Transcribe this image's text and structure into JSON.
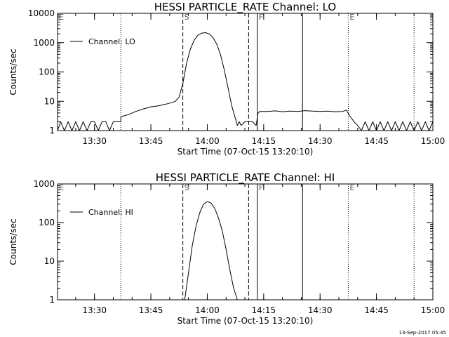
{
  "footer": {
    "timestamp": "13-Sep-2017 05:45"
  },
  "chart_data": [
    {
      "type": "line",
      "title": "HESSI PARTICLE_RATE Channel: LO",
      "xlabel": "Start Time (07-Oct-15 13:20:10)",
      "ylabel": "Counts/sec",
      "xscale": "linear",
      "yscale": "log",
      "xlim": [
        "13:20:10",
        "15:00"
      ],
      "ylim": [
        1,
        10000
      ],
      "x_ticks": [
        "13:30",
        "13:45",
        "14:00",
        "14:15",
        "14:30",
        "14:45",
        "15:00"
      ],
      "y_ticks": [
        "1",
        "10",
        "100",
        "1000",
        "10000"
      ],
      "legend": {
        "position": "top-left",
        "entries": [
          "Channel: LO"
        ]
      },
      "markers": [
        {
          "label": "E",
          "time": "13:20:10",
          "style": "dotted"
        },
        {
          "label": "",
          "time": "13:37:00",
          "style": "dotted"
        },
        {
          "label": "S",
          "time": "13:53:30",
          "style": "dashed"
        },
        {
          "label": "",
          "time": "14:11:00",
          "style": "dashed"
        },
        {
          "label": "F",
          "time": "14:13:20",
          "style": "solid"
        },
        {
          "label": "",
          "time": "14:25:20",
          "style": "solid"
        },
        {
          "label": "E",
          "time": "14:37:30",
          "style": "dotted"
        },
        {
          "label": "",
          "time": "14:55:00",
          "style": "dotted"
        }
      ],
      "series": [
        {
          "name": "Channel: LO",
          "x": [
            "13:20:10",
            "13:21:00",
            "13:22:00",
            "13:23:00",
            "13:24:00",
            "13:25:00",
            "13:26:00",
            "13:27:00",
            "13:28:00",
            "13:29:00",
            "13:30:00",
            "13:31:00",
            "13:32:00",
            "13:33:00",
            "13:34:00",
            "13:35:00",
            "13:36:00",
            "13:37:00",
            "13:37:01",
            "13:39:00",
            "13:41:00",
            "13:43:00",
            "13:45:00",
            "13:47:00",
            "13:49:00",
            "13:50:30",
            "13:51:30",
            "13:52:30",
            "13:53:30",
            "13:54:30",
            "13:55:30",
            "13:56:30",
            "13:57:30",
            "13:58:30",
            "13:59:30",
            "14:00:30",
            "14:01:30",
            "14:02:30",
            "14:03:30",
            "14:04:30",
            "14:05:30",
            "14:06:30",
            "14:07:30",
            "14:08:00",
            "14:08:30",
            "14:09:00",
            "14:10:00",
            "14:11:00",
            "14:12:00",
            "14:13:00",
            "14:13:30",
            "14:14:00",
            "14:16:00",
            "14:18:00",
            "14:20:00",
            "14:22:00",
            "14:24:00",
            "14:26:00",
            "14:28:00",
            "14:30:00",
            "14:32:00",
            "14:34:00",
            "14:36:00",
            "14:37:00",
            "14:38:00",
            "14:38:30",
            "14:39:00",
            "14:40:00",
            "14:41:00",
            "14:42:00",
            "14:43:00",
            "14:44:00",
            "14:45:00",
            "14:46:00",
            "14:47:00",
            "14:48:00",
            "14:49:00",
            "14:50:00",
            "14:51:00",
            "14:52:00",
            "14:53:00",
            "14:54:00",
            "14:55:00",
            "14:56:00",
            "14:57:00",
            "14:58:00",
            "14:59:00",
            "15:00:00"
          ],
          "y": [
            1,
            2,
            1,
            2,
            1,
            2,
            1,
            2,
            1,
            2,
            2,
            1,
            2,
            2,
            1,
            2,
            2,
            2,
            3,
            3.5,
            4.5,
            5.5,
            6.5,
            7,
            8,
            9,
            10,
            14,
            40,
            200,
            600,
            1200,
            1800,
            2100,
            2200,
            2000,
            1500,
            900,
            400,
            120,
            30,
            7,
            2.5,
            1.5,
            2,
            1.5,
            2,
            2,
            2,
            1.5,
            4,
            4.5,
            4.5,
            4.7,
            4.4,
            4.6,
            4.5,
            4.8,
            4.6,
            4.5,
            4.6,
            4.4,
            4.5,
            5,
            3,
            2.5,
            2,
            1.5,
            1,
            2,
            1,
            2,
            1,
            2,
            1,
            2,
            1,
            2,
            1,
            2,
            1,
            2,
            1,
            2,
            1,
            2,
            1,
            2
          ]
        }
      ]
    },
    {
      "type": "line",
      "title": "HESSI PARTICLE_RATE Channel: HI",
      "xlabel": "Start Time (07-Oct-15 13:20:10)",
      "ylabel": "Counts/sec",
      "xscale": "linear",
      "yscale": "log",
      "xlim": [
        "13:20:10",
        "15:00"
      ],
      "ylim": [
        1,
        1000
      ],
      "x_ticks": [
        "13:30",
        "13:45",
        "14:00",
        "14:15",
        "14:30",
        "14:45",
        "15:00"
      ],
      "y_ticks": [
        "1",
        "10",
        "100",
        "1000"
      ],
      "legend": {
        "position": "top-left",
        "entries": [
          "Channel: HI"
        ]
      },
      "markers": [
        {
          "label": "E",
          "time": "13:20:10",
          "style": "dotted"
        },
        {
          "label": "",
          "time": "13:37:00",
          "style": "dotted"
        },
        {
          "label": "S",
          "time": "13:53:30",
          "style": "dashed"
        },
        {
          "label": "",
          "time": "14:11:00",
          "style": "dashed"
        },
        {
          "label": "F",
          "time": "14:13:20",
          "style": "solid"
        },
        {
          "label": "",
          "time": "14:25:20",
          "style": "solid"
        },
        {
          "label": "E",
          "time": "14:37:30",
          "style": "dotted"
        },
        {
          "label": "",
          "time": "14:55:00",
          "style": "dotted"
        }
      ],
      "series": [
        {
          "name": "Channel: HI",
          "x": [
            "13:54:00",
            "13:55:00",
            "13:56:00",
            "13:57:00",
            "13:58:00",
            "13:59:00",
            "14:00:00",
            "14:01:00",
            "14:02:00",
            "14:03:00",
            "14:04:00",
            "14:05:00",
            "14:06:00",
            "14:07:00",
            "14:08:00"
          ],
          "y": [
            1,
            5,
            25,
            80,
            180,
            300,
            350,
            320,
            230,
            130,
            60,
            20,
            6,
            2,
            1
          ]
        }
      ]
    }
  ]
}
